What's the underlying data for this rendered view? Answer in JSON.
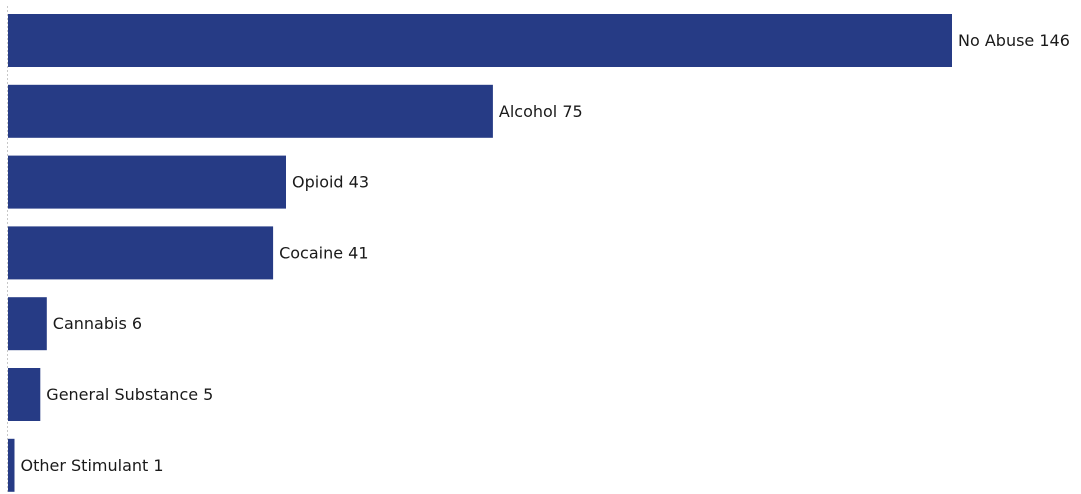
{
  "chart_data": {
    "type": "bar",
    "orientation": "horizontal",
    "categories": [
      "No Abuse",
      "Alcohol",
      "Opioid",
      "Cocaine",
      "Cannabis",
      "General Substance",
      "Other Stimulant"
    ],
    "values": [
      146,
      75,
      43,
      41,
      6,
      5,
      1
    ],
    "title": "",
    "xlabel": "",
    "ylabel": "",
    "xlim": [
      0,
      146
    ],
    "grid": false,
    "legend": "none",
    "bar_color": "#263b85",
    "label_color": "#1a1a1a",
    "axis_line_color": "#c8c8c8"
  }
}
